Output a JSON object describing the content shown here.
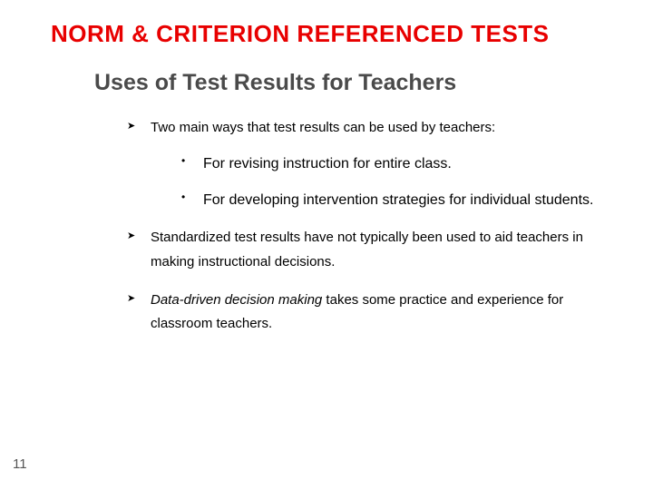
{
  "title": "NORM & CRITERION REFERENCED TESTS",
  "subtitle": "Uses of Test Results for Teachers",
  "bullets": {
    "b1": "Two main ways that test results can be used by teachers:",
    "b1a": "For revising instruction for entire class.",
    "b1b": "For developing intervention strategies for individual students.",
    "b2": "Standardized test results have not typically been used to aid teachers in making instructional decisions.",
    "b3_em": "Data-driven decision making",
    "b3_rest": " takes some practice and experience for classroom teachers."
  },
  "page_number": "11",
  "colors": {
    "title_color": "#e80000",
    "subtitle_color": "#4a4a4a",
    "text_color": "#000000",
    "background": "#ffffff"
  },
  "typography": {
    "title_fontsize": 26,
    "subtitle_fontsize": 25,
    "body_fontsize": 15,
    "sub_body_fontsize": 16,
    "title_font": "Comic Sans MS",
    "body_font": "Arial"
  }
}
